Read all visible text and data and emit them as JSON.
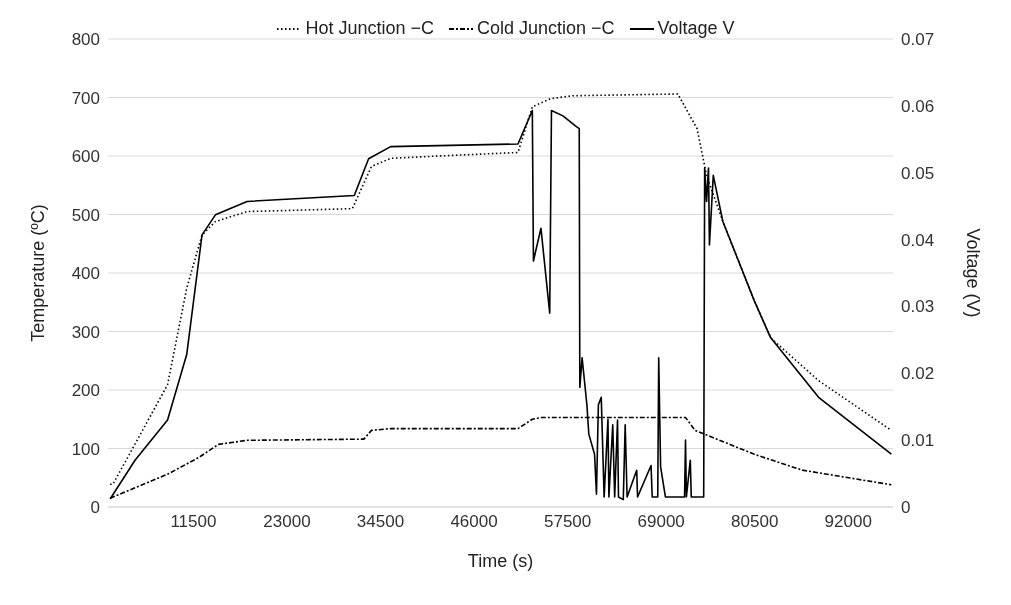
{
  "chart_data": {
    "type": "line",
    "xlabel": "Time (s)",
    "ylabel": "Temperature (ºC)",
    "y2label": "Voltage (V)",
    "xlim": [
      1000,
      97500
    ],
    "xticks": [
      11500,
      23000,
      34500,
      46000,
      57500,
      69000,
      80500,
      92000
    ],
    "ylim": [
      0,
      800
    ],
    "yticks": [
      0,
      100,
      200,
      300,
      400,
      500,
      600,
      700,
      800
    ],
    "y2lim": [
      0,
      0.07
    ],
    "y2ticks": [
      0,
      0.01,
      0.02,
      0.03,
      0.04,
      0.05,
      0.06,
      0.07
    ],
    "grid": "y",
    "legend": "top",
    "marker": "none",
    "series": [
      {
        "name": "Hot Junction −C",
        "color": "#000000",
        "line_style": "dotted",
        "x": [
          1261,
          1614,
          8322,
          10676,
          12559,
          14207,
          18091,
          31037,
          33390,
          35744,
          41629,
          51397,
          53162,
          55398,
          58105,
          71051,
          73405,
          74582,
          76583,
          80466,
          82467,
          88352,
          97296
        ],
        "values": [
          39,
          39,
          209,
          374,
          465,
          488,
          505,
          510,
          582,
          596,
          600,
          606,
          684,
          698,
          703,
          706,
          647,
          567,
          488,
          352,
          289,
          216,
          131
        ]
      },
      {
        "name": "Cold Junction −C",
        "color": "#000000",
        "line_style": "dashed",
        "x": [
          1261,
          8322,
          12206,
          14560,
          18091,
          32448,
          33390,
          35744,
          51397,
          53162,
          54221,
          71994,
          73170,
          80466,
          86352,
          97296
        ],
        "values": [
          15,
          56,
          85,
          107,
          114,
          116,
          131,
          134,
          134,
          150,
          153,
          153,
          131,
          90,
          63,
          38
        ]
      },
      {
        "name": "Voltage V",
        "color": "#000000",
        "line_style": "solid",
        "axis": "y2",
        "x": [
          1261,
          4321,
          8322,
          10676,
          12559,
          14207,
          18091,
          31272,
          33037,
          35744,
          51397,
          53162,
          53300,
          54221,
          55300,
          55516,
          56928,
          58458,
          58929,
          59000,
          59282,
          59870,
          60106,
          60812,
          61047,
          61282,
          61635,
          61989,
          62459,
          62577,
          63048,
          63284,
          63637,
          63754,
          64343,
          64578,
          64814,
          65991,
          66100,
          67756,
          67900,
          68580,
          68698,
          68933,
          69522,
          71876,
          71994,
          72100,
          72582,
          72700,
          74229,
          74347,
          74582,
          74818,
          74935,
          75406,
          76583,
          80466,
          82467,
          88352,
          97296
        ],
        "values": [
          0.0012,
          0.007,
          0.013,
          0.0228,
          0.0407,
          0.0437,
          0.0457,
          0.0466,
          0.0521,
          0.0539,
          0.0543,
          0.0593,
          0.0368,
          0.0417,
          0.029,
          0.0593,
          0.0585,
          0.057,
          0.0566,
          0.0179,
          0.0223,
          0.0153,
          0.0109,
          0.0079,
          0.0019,
          0.0153,
          0.0164,
          0.0015,
          0.0131,
          0.0015,
          0.0123,
          0.0015,
          0.013,
          0.0015,
          0.0011,
          0.0123,
          0.0015,
          0.0055,
          0.0015,
          0.0062,
          0.0015,
          0.0015,
          0.0223,
          0.006,
          0.0015,
          0.0015,
          0.01,
          0.0015,
          0.007,
          0.0015,
          0.0015,
          0.0507,
          0.0457,
          0.0507,
          0.0392,
          0.0496,
          0.0427,
          0.0308,
          0.0253,
          0.0164,
          0.0079
        ]
      }
    ]
  }
}
